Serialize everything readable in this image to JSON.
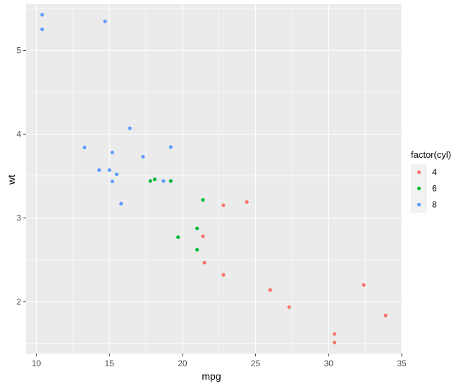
{
  "chart_data": {
    "type": "scatter",
    "title": "",
    "xlabel": "mpg",
    "ylabel": "wt",
    "xlim": [
      9.3,
      35.0
    ],
    "ylim": [
      1.38,
      5.55
    ],
    "x_ticks": [
      10,
      15,
      20,
      25,
      30,
      35
    ],
    "y_ticks": [
      2,
      3,
      4,
      5
    ],
    "grid": true,
    "legend": {
      "title": "factor(cyl)",
      "placement": "right"
    },
    "series": [
      {
        "name": "4",
        "color": "#F8766D",
        "points": [
          {
            "x": 22.8,
            "y": 2.32
          },
          {
            "x": 24.4,
            "y": 3.19
          },
          {
            "x": 22.8,
            "y": 3.15
          },
          {
            "x": 32.4,
            "y": 2.2
          },
          {
            "x": 30.4,
            "y": 1.615
          },
          {
            "x": 33.9,
            "y": 1.835
          },
          {
            "x": 21.5,
            "y": 2.465
          },
          {
            "x": 27.3,
            "y": 1.935
          },
          {
            "x": 26.0,
            "y": 2.14
          },
          {
            "x": 30.4,
            "y": 1.513
          },
          {
            "x": 21.4,
            "y": 2.78
          }
        ]
      },
      {
        "name": "6",
        "color": "#00BA38",
        "points": [
          {
            "x": 21.0,
            "y": 2.62
          },
          {
            "x": 21.0,
            "y": 2.875
          },
          {
            "x": 21.4,
            "y": 3.215
          },
          {
            "x": 18.1,
            "y": 3.46
          },
          {
            "x": 19.2,
            "y": 3.44
          },
          {
            "x": 17.8,
            "y": 3.44
          },
          {
            "x": 19.7,
            "y": 2.77
          }
        ]
      },
      {
        "name": "8",
        "color": "#619CFF",
        "points": [
          {
            "x": 18.7,
            "y": 3.44
          },
          {
            "x": 14.3,
            "y": 3.57
          },
          {
            "x": 16.4,
            "y": 4.07
          },
          {
            "x": 17.3,
            "y": 3.73
          },
          {
            "x": 15.2,
            "y": 3.78
          },
          {
            "x": 10.4,
            "y": 5.25
          },
          {
            "x": 10.4,
            "y": 5.424
          },
          {
            "x": 14.7,
            "y": 5.345
          },
          {
            "x": 15.5,
            "y": 3.52
          },
          {
            "x": 15.2,
            "y": 3.435
          },
          {
            "x": 13.3,
            "y": 3.84
          },
          {
            "x": 19.2,
            "y": 3.845
          },
          {
            "x": 15.8,
            "y": 3.17
          },
          {
            "x": 15.0,
            "y": 3.57
          }
        ]
      }
    ]
  }
}
